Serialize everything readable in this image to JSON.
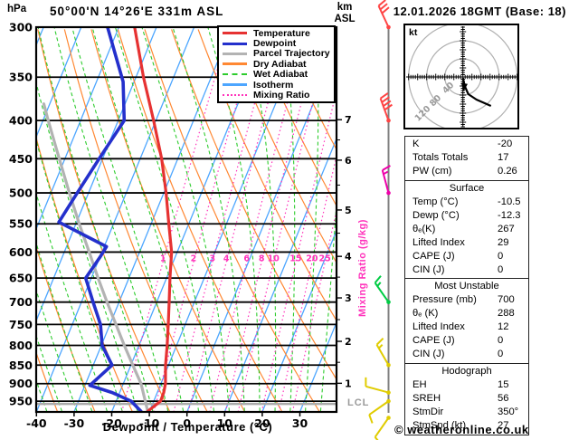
{
  "header": {
    "pressure_unit": "hPa",
    "station_title": "50°00'N 14°26'E 331m ASL",
    "altitude_unit_line1": "km",
    "altitude_unit_line2": "ASL",
    "datetime_title": "12.01.2026 18GMT (Base: 18)"
  },
  "labels": {
    "xaxis": "Dewpoint / Temperature (°C)",
    "mixing_ratio_axis": "Mixing Ratio (g/kg)",
    "lcl": "LCL",
    "hodograph_unit": "kt"
  },
  "footer": {
    "credit": "© weatheronline.co.uk"
  },
  "colors": {
    "temperature": "#e63232",
    "dewpoint": "#2430cc",
    "parcel": "#b3b3b3",
    "dry_adiabat": "#ff8833",
    "wet_adiabat": "#2ecc2e",
    "isotherm": "#4da6ff",
    "mixing_ratio": "#ff33bb",
    "grid": "#000000",
    "lcl_line": "#aaaaaa",
    "wind_staff": "#808080",
    "hodograph_ring": "#b0b0b0",
    "hodograph_trace": "#000000"
  },
  "legend": {
    "items": [
      {
        "label": "Temperature",
        "color": "#e63232",
        "style": "solid"
      },
      {
        "label": "Dewpoint",
        "color": "#2430cc",
        "style": "solid"
      },
      {
        "label": "Parcel Trajectory",
        "color": "#b3b3b3",
        "style": "solid"
      },
      {
        "label": "Dry Adiabat",
        "color": "#ff8833",
        "style": "solid"
      },
      {
        "label": "Wet Adiabat",
        "color": "#2ecc2e",
        "style": "dashed"
      },
      {
        "label": "Isotherm",
        "color": "#4da6ff",
        "style": "solid"
      },
      {
        "label": "Mixing Ratio",
        "color": "#ff33bb",
        "style": "dotted"
      }
    ]
  },
  "chart_data": {
    "type": "line",
    "subtype": "skew-t-log-p",
    "title": "50°00'N 14°26'E 331m ASL",
    "xlabel": "Dewpoint / Temperature (°C)",
    "ylabel": "hPa",
    "x_ticks": [
      -40,
      -30,
      -20,
      -10,
      0,
      10,
      20,
      30
    ],
    "x_surface_range": [
      -40,
      40
    ],
    "pressure_ticks": [
      300,
      350,
      400,
      450,
      500,
      550,
      600,
      650,
      700,
      750,
      800,
      850,
      900,
      950
    ],
    "pressure_range": [
      300,
      982
    ],
    "isotherm_step_C": 10,
    "dry_adiabat_theta_K": {
      "from": 230,
      "to": 450,
      "step": 10
    },
    "wet_adiabat_start_C": {
      "from": -40,
      "to": 36,
      "step": 4
    },
    "mixing_ratio_lines_gkg": [
      1,
      2,
      3,
      4,
      6,
      8,
      10,
      15,
      20,
      25
    ],
    "mixing_ratio_label_pressure": 612,
    "lcl_pressure": 958,
    "km_scale": [
      {
        "km": 1,
        "p": 899
      },
      {
        "km": 2,
        "p": 790
      },
      {
        "km": 3,
        "p": 691
      },
      {
        "km": 4,
        "p": 608
      },
      {
        "km": 5,
        "p": 527
      },
      {
        "km": 6,
        "p": 452
      },
      {
        "km": 7,
        "p": 399
      }
    ],
    "series": {
      "temperature": [
        [
          980,
          -10.5
        ],
        [
          950,
          -8.2
        ],
        [
          925,
          -8.3
        ],
        [
          900,
          -8.8
        ],
        [
          850,
          -10.8
        ],
        [
          800,
          -12.5
        ],
        [
          750,
          -14.5
        ],
        [
          700,
          -16.7
        ],
        [
          650,
          -19.1
        ],
        [
          600,
          -21.5
        ],
        [
          550,
          -25.3
        ],
        [
          500,
          -29.4
        ],
        [
          450,
          -34.3
        ],
        [
          400,
          -40.6
        ],
        [
          350,
          -48.0
        ],
        [
          300,
          -55.8
        ]
      ],
      "dewpoint": [
        [
          980,
          -12.3
        ],
        [
          950,
          -16.0
        ],
        [
          925,
          -22.0
        ],
        [
          905,
          -28.7
        ],
        [
          850,
          -25.0
        ],
        [
          800,
          -29.8
        ],
        [
          750,
          -32.5
        ],
        [
          700,
          -36.9
        ],
        [
          650,
          -41.5
        ],
        [
          610,
          -40.0
        ],
        [
          590,
          -39.4
        ],
        [
          547,
          -54.7
        ],
        [
          500,
          -53.0
        ],
        [
          450,
          -50.9
        ],
        [
          400,
          -48.4
        ],
        [
          355,
          -52.9
        ],
        [
          300,
          -63.0
        ]
      ],
      "parcel": [
        [
          980,
          -10.5
        ],
        [
          900,
          -15.3
        ],
        [
          850,
          -19.5
        ],
        [
          800,
          -23.9
        ],
        [
          750,
          -28.4
        ],
        [
          700,
          -33.2
        ],
        [
          650,
          -38.2
        ],
        [
          600,
          -43.4
        ],
        [
          550,
          -49.1
        ],
        [
          500,
          -55.1
        ],
        [
          450,
          -61.5
        ],
        [
          400,
          -68.6
        ],
        [
          380,
          -71.6
        ]
      ]
    },
    "wind_barbs": [
      {
        "p": 300,
        "color": "#ff4444",
        "dir": 335,
        "full": 3,
        "half": 0
      },
      {
        "p": 400,
        "color": "#ff4444",
        "dir": 340,
        "full": 4,
        "half": 0
      },
      {
        "p": 500,
        "color": "#ee00aa",
        "dir": 345,
        "full": 1,
        "half": 1
      },
      {
        "p": 700,
        "color": "#00cc44",
        "dir": 325,
        "full": 1,
        "half": 1
      },
      {
        "p": 850,
        "color": "#e0cc00",
        "dir": 330,
        "full": 1,
        "half": 1
      },
      {
        "p": 925,
        "color": "#e0cc00",
        "dir": 285,
        "full": 1,
        "half": 0
      },
      {
        "p": 950,
        "color": "#e0cc00",
        "dir": 235,
        "full": 1,
        "half": 0
      },
      {
        "p": 1000,
        "color": "#e0cc00",
        "dir": 215,
        "full": 1,
        "half": 0
      }
    ]
  },
  "hodograph": {
    "unit": "kt",
    "rings_kt": [
      40,
      80,
      120
    ],
    "ring_labels": [
      "40",
      "80",
      "120"
    ],
    "trace_kt": [
      [
        0,
        2
      ],
      [
        4,
        20
      ],
      [
        12,
        38
      ],
      [
        30,
        50
      ],
      [
        62,
        64
      ]
    ]
  },
  "indices": {
    "sections": [
      {
        "header": "",
        "rows": [
          {
            "label": "K",
            "value": "-20"
          },
          {
            "label": "Totals Totals",
            "value": "17"
          },
          {
            "label": "PW (cm)",
            "value": "0.26"
          }
        ]
      },
      {
        "header": "Surface",
        "rows": [
          {
            "label": "Temp (°C)",
            "value": "-10.5"
          },
          {
            "label": "Dewp (°C)",
            "value": "-12.3"
          },
          {
            "label": "θₑ(K)",
            "value": "267"
          },
          {
            "label": "Lifted Index",
            "value": "29"
          },
          {
            "label": "CAPE (J)",
            "value": "0"
          },
          {
            "label": "CIN (J)",
            "value": "0"
          }
        ]
      },
      {
        "header": "Most Unstable",
        "rows": [
          {
            "label": "Pressure (mb)",
            "value": "700"
          },
          {
            "label": "θₑ (K)",
            "value": "288"
          },
          {
            "label": "Lifted Index",
            "value": "12"
          },
          {
            "label": "CAPE (J)",
            "value": "0"
          },
          {
            "label": "CIN (J)",
            "value": "0"
          }
        ]
      },
      {
        "header": "Hodograph",
        "rows": [
          {
            "label": "EH",
            "value": "15"
          },
          {
            "label": "SREH",
            "value": "56"
          },
          {
            "label": "StmDir",
            "value": "350°"
          },
          {
            "label": "StmSpd (kt)",
            "value": "27"
          }
        ]
      }
    ]
  }
}
